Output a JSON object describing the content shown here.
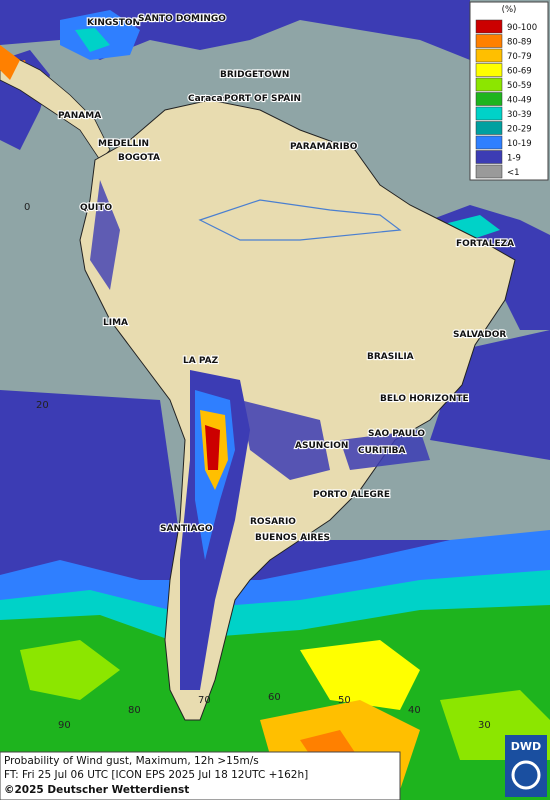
{
  "legend": {
    "title": "(%)",
    "items": [
      {
        "label": "90-100",
        "color": "#cc0000"
      },
      {
        "label": "80-89",
        "color": "#ff8000"
      },
      {
        "label": "70-79",
        "color": "#ffbf00"
      },
      {
        "label": "60-69",
        "color": "#ffff00"
      },
      {
        "label": "50-59",
        "color": "#8ce600"
      },
      {
        "label": "40-49",
        "color": "#1eb41e"
      },
      {
        "label": "30-39",
        "color": "#00d2c8"
      },
      {
        "label": "20-29",
        "color": "#00a0a0"
      },
      {
        "label": "10-19",
        "color": "#2f7fff"
      },
      {
        "label": "1-9",
        "color": "#3c3cb4"
      },
      {
        "label": "<1",
        "color": "#9a9a9a"
      }
    ]
  },
  "cities": [
    "KINGSTON",
    "SANTO DOMINGO",
    "BRIDGETOWN",
    "Caracas",
    "PORT OF SPAIN",
    "PANAMA",
    "MEDELLIN",
    "BOGOTA",
    "PARAMARIBO",
    "QUITO",
    "FORTALEZA",
    "LIMA",
    "SALVADOR",
    "LA PAZ",
    "BRASILIA",
    "BELO HORIZONTE",
    "SAO PAULO",
    "ASUNCION",
    "CURITIBA",
    "PORTO ALEGRE",
    "ROSARIO",
    "SANTIAGO",
    "BUENOS AIRES"
  ],
  "grid_labels": [
    "0",
    "20",
    "90",
    "80",
    "70",
    "60",
    "50",
    "40",
    "30"
  ],
  "footer": {
    "line1": "Probability of Wind gust, Maximum, 12h >15m/s",
    "line2": "FT: Fri 25 Jul 06 UTC [ICON EPS 2025 Jul 18 12UTC +162h]",
    "copyright": "©2025 Deutscher Wetterdienst"
  },
  "logo": "DWD"
}
